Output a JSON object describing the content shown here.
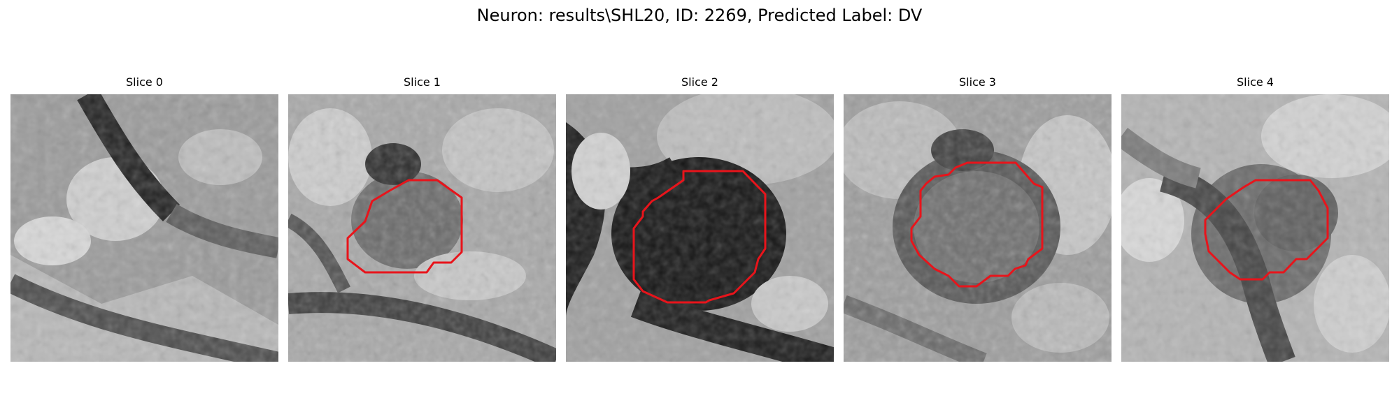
{
  "figure": {
    "title": "Neuron: results\\SHL20, ID: 2269, Predicted Label: DV"
  },
  "panels": [
    {
      "title": "Slice 0"
    },
    {
      "title": "Slice 1"
    },
    {
      "title": "Slice 2"
    },
    {
      "title": "Slice 3"
    },
    {
      "title": "Slice 4"
    }
  ],
  "colors": {
    "contour": "#e8141b",
    "background": "#ffffff"
  }
}
